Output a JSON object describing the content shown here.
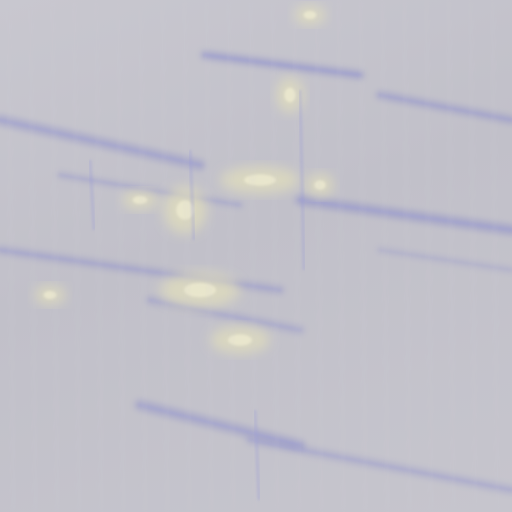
{
  "image": {
    "palette": {
      "base": "#c4c3cb",
      "base_light": "#cfced5",
      "streak_blue": "#6f72c4",
      "streak_blue_soft": "#9a9bd6",
      "highlight_yellow": "#ece8b8",
      "highlight_cream": "#f4f1d6"
    }
  }
}
